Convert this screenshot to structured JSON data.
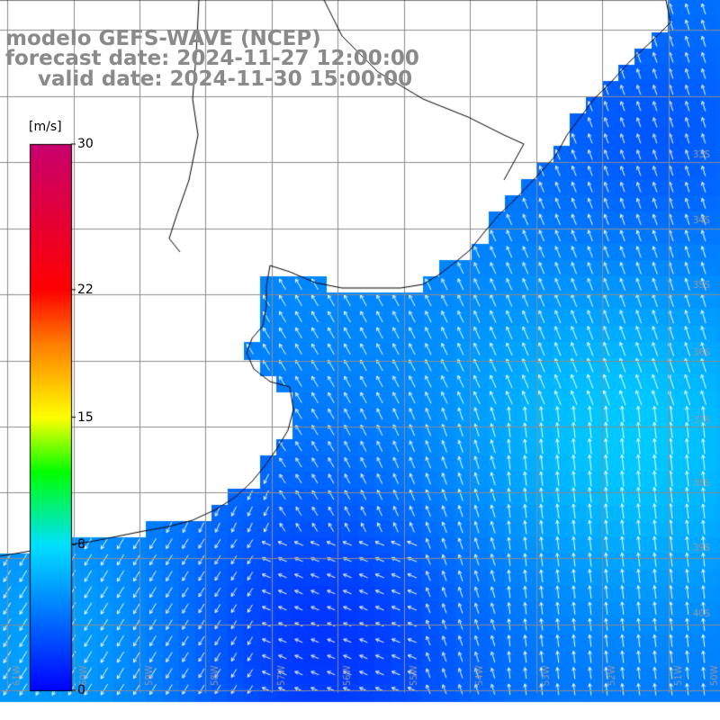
{
  "title": {
    "model": "modelo GEFS-WAVE (NCEP)",
    "forecast": "forecast date: 2024-11-27 12:00:00",
    "valid": "valid date: 2024-11-30 15:00:00"
  },
  "colorbar": {
    "unit": "[m/s]",
    "min": 0,
    "max": 30,
    "ticks": [
      {
        "value": 30,
        "label": "30"
      },
      {
        "value": 22,
        "label": "22"
      },
      {
        "value": 15,
        "label": "15"
      },
      {
        "value": 8,
        "label": "8"
      },
      {
        "value": 0,
        "label": "0"
      }
    ],
    "colors": [
      "#0000ff",
      "#00e0ff",
      "#00ff00",
      "#ffff00",
      "#ff7f00",
      "#ff0000",
      "#c8006e"
    ]
  },
  "map": {
    "field": "wind speed",
    "vector_color": "#ffffff",
    "graticule_color": "#8c8c8c",
    "lat_labels": [
      "33S",
      "34S",
      "35S",
      "36S",
      "37S",
      "38S",
      "39S",
      "40S"
    ],
    "lon_labels": [
      "61W",
      "60W",
      "59W",
      "58W",
      "57W",
      "56W",
      "55W",
      "54W",
      "53W",
      "52W",
      "51W",
      "50W"
    ]
  }
}
